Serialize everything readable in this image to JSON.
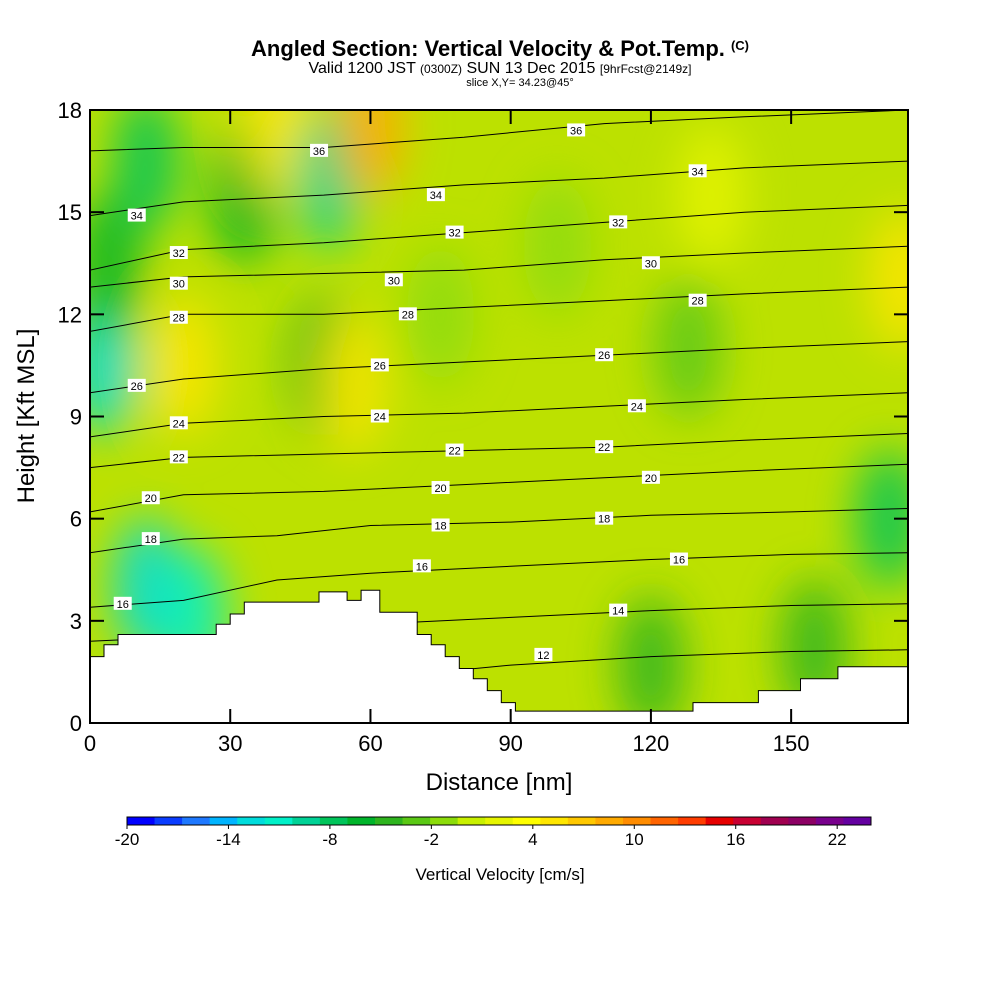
{
  "chart_data": {
    "type": "heatmap",
    "title": "Angled Section: Vertical Velocity & Pot.Temp.",
    "title_mark": "(C)",
    "subtitle_main": "Valid 1200 JST",
    "subtitle_small": "(0300Z)",
    "subtitle_date": "SUN 13 Dec 2015",
    "subtitle_fcst": "[9hrFcst@2149z]",
    "slice_info": "slice X,Y= 34.23@45°",
    "xlabel": "Distance [nm]",
    "ylabel": "Height [Kft MSL]",
    "xlim": [
      0,
      175
    ],
    "ylim": [
      0,
      18
    ],
    "x_ticks": [
      0,
      30,
      60,
      90,
      120,
      150
    ],
    "y_ticks": [
      0,
      3,
      6,
      9,
      12,
      15,
      18
    ],
    "grid": false,
    "colorbar": {
      "title": "Vertical Velocity [cm/s]",
      "min": -20,
      "max": 24,
      "tick_values": [
        -20,
        -14,
        -8,
        -2,
        4,
        10,
        16,
        22
      ],
      "tick_labels": [
        "-20",
        "-14",
        "-8",
        "-2",
        "4",
        "10",
        "16",
        "22"
      ],
      "colors": [
        "#0000ff",
        "#0a3cff",
        "#1e78ff",
        "#00b4ff",
        "#00dcdc",
        "#00f0c8",
        "#00d296",
        "#00c45a",
        "#00b42a",
        "#2eb41e",
        "#5ac814",
        "#8cdc0a",
        "#c8f000",
        "#e6f500",
        "#ffff00",
        "#ffe600",
        "#ffc800",
        "#ffaa00",
        "#ff8c00",
        "#ff6400",
        "#ff3c00",
        "#e60000",
        "#c80032",
        "#a00050",
        "#8c0064",
        "#78008c",
        "#6400a0"
      ]
    },
    "theta_contours": [
      {
        "label": "12",
        "points": [
          [
            0,
            0.9
          ],
          [
            30,
            1.0
          ],
          [
            60,
            1.3
          ],
          [
            90,
            1.7
          ],
          [
            120,
            1.95
          ],
          [
            150,
            2.1
          ],
          [
            175,
            2.15
          ]
        ]
      },
      {
        "label": "14",
        "points": [
          [
            0,
            2.4
          ],
          [
            30,
            2.6
          ],
          [
            60,
            2.9
          ],
          [
            90,
            3.1
          ],
          [
            120,
            3.3
          ],
          [
            150,
            3.45
          ],
          [
            175,
            3.5
          ]
        ]
      },
      {
        "label": "16",
        "points": [
          [
            0,
            3.4
          ],
          [
            20,
            3.6
          ],
          [
            40,
            4.2
          ],
          [
            60,
            4.4
          ],
          [
            90,
            4.6
          ],
          [
            120,
            4.8
          ],
          [
            150,
            4.95
          ],
          [
            175,
            5.0
          ]
        ]
      },
      {
        "label": "18",
        "points": [
          [
            0,
            5.0
          ],
          [
            20,
            5.4
          ],
          [
            40,
            5.5
          ],
          [
            60,
            5.8
          ],
          [
            90,
            5.9
          ],
          [
            120,
            6.1
          ],
          [
            150,
            6.2
          ],
          [
            175,
            6.3
          ]
        ]
      },
      {
        "label": "20",
        "points": [
          [
            0,
            6.2
          ],
          [
            20,
            6.7
          ],
          [
            50,
            6.8
          ],
          [
            80,
            7.0
          ],
          [
            110,
            7.2
          ],
          [
            140,
            7.4
          ],
          [
            175,
            7.6
          ]
        ]
      },
      {
        "label": "22",
        "points": [
          [
            0,
            7.5
          ],
          [
            20,
            7.8
          ],
          [
            50,
            7.9
          ],
          [
            80,
            8.0
          ],
          [
            110,
            8.1
          ],
          [
            140,
            8.3
          ],
          [
            175,
            8.5
          ]
        ]
      },
      {
        "label": "24",
        "points": [
          [
            0,
            8.4
          ],
          [
            20,
            8.8
          ],
          [
            50,
            9.0
          ],
          [
            80,
            9.1
          ],
          [
            110,
            9.3
          ],
          [
            140,
            9.5
          ],
          [
            175,
            9.7
          ]
        ]
      },
      {
        "label": "26",
        "points": [
          [
            0,
            9.7
          ],
          [
            20,
            10.1
          ],
          [
            50,
            10.4
          ],
          [
            80,
            10.6
          ],
          [
            110,
            10.8
          ],
          [
            140,
            11.0
          ],
          [
            175,
            11.2
          ]
        ]
      },
      {
        "label": "28",
        "points": [
          [
            0,
            11.5
          ],
          [
            20,
            12.0
          ],
          [
            50,
            12.0
          ],
          [
            80,
            12.2
          ],
          [
            110,
            12.4
          ],
          [
            140,
            12.6
          ],
          [
            175,
            12.8
          ]
        ]
      },
      {
        "label": "30",
        "points": [
          [
            0,
            12.8
          ],
          [
            20,
            13.1
          ],
          [
            50,
            13.2
          ],
          [
            80,
            13.3
          ],
          [
            110,
            13.6
          ],
          [
            140,
            13.8
          ],
          [
            175,
            14.0
          ]
        ]
      },
      {
        "label": "32",
        "points": [
          [
            0,
            13.3
          ],
          [
            20,
            13.9
          ],
          [
            50,
            14.1
          ],
          [
            80,
            14.4
          ],
          [
            110,
            14.7
          ],
          [
            140,
            15.0
          ],
          [
            175,
            15.2
          ]
        ]
      },
      {
        "label": "34",
        "points": [
          [
            0,
            14.9
          ],
          [
            20,
            15.3
          ],
          [
            50,
            15.5
          ],
          [
            80,
            15.8
          ],
          [
            110,
            16.0
          ],
          [
            140,
            16.3
          ],
          [
            175,
            16.5
          ]
        ]
      },
      {
        "label": "36",
        "points": [
          [
            0,
            16.8
          ],
          [
            20,
            16.9
          ],
          [
            50,
            16.9
          ],
          [
            80,
            17.2
          ],
          [
            110,
            17.6
          ],
          [
            140,
            17.8
          ],
          [
            175,
            18.0
          ]
        ]
      }
    ],
    "contour_label_positions": [
      {
        "label": "36",
        "x": 49,
        "y": 16.8
      },
      {
        "label": "36",
        "x": 104,
        "y": 17.4
      },
      {
        "label": "34",
        "x": 10,
        "y": 14.9
      },
      {
        "label": "34",
        "x": 74,
        "y": 15.5
      },
      {
        "label": "34",
        "x": 130,
        "y": 16.2
      },
      {
        "label": "32",
        "x": 19,
        "y": 13.8
      },
      {
        "label": "32",
        "x": 78,
        "y": 14.4
      },
      {
        "label": "32",
        "x": 113,
        "y": 14.7
      },
      {
        "label": "30",
        "x": 19,
        "y": 12.9
      },
      {
        "label": "30",
        "x": 65,
        "y": 13.0
      },
      {
        "label": "30",
        "x": 120,
        "y": 13.5
      },
      {
        "label": "28",
        "x": 19,
        "y": 11.9
      },
      {
        "label": "28",
        "x": 68,
        "y": 12.0
      },
      {
        "label": "28",
        "x": 130,
        "y": 12.4
      },
      {
        "label": "26",
        "x": 10,
        "y": 9.9
      },
      {
        "label": "26",
        "x": 62,
        "y": 10.5
      },
      {
        "label": "26",
        "x": 110,
        "y": 10.8
      },
      {
        "label": "24",
        "x": 19,
        "y": 8.8
      },
      {
        "label": "24",
        "x": 62,
        "y": 9.0
      },
      {
        "label": "24",
        "x": 117,
        "y": 9.3
      },
      {
        "label": "22",
        "x": 19,
        "y": 7.8
      },
      {
        "label": "22",
        "x": 78,
        "y": 8.0
      },
      {
        "label": "22",
        "x": 110,
        "y": 8.1
      },
      {
        "label": "20",
        "x": 13,
        "y": 6.6
      },
      {
        "label": "20",
        "x": 75,
        "y": 6.9
      },
      {
        "label": "20",
        "x": 120,
        "y": 7.2
      },
      {
        "label": "18",
        "x": 13,
        "y": 5.4
      },
      {
        "label": "18",
        "x": 75,
        "y": 5.8
      },
      {
        "label": "18",
        "x": 110,
        "y": 6.0
      },
      {
        "label": "16",
        "x": 7,
        "y": 3.5
      },
      {
        "label": "16",
        "x": 71,
        "y": 4.6
      },
      {
        "label": "16",
        "x": 126,
        "y": 4.8
      },
      {
        "label": "14",
        "x": 113,
        "y": 3.3
      },
      {
        "label": "12",
        "x": 97,
        "y": 2.0
      }
    ],
    "velocity_field": [
      {
        "x": 3,
        "y": 10.5,
        "value": -12
      },
      {
        "x": 4,
        "y": 13.5,
        "value": -6
      },
      {
        "x": 12,
        "y": 4.0,
        "value": -13
      },
      {
        "x": 22,
        "y": 3.1,
        "value": -11
      },
      {
        "x": 12,
        "y": 16.5,
        "value": -7
      },
      {
        "x": 20,
        "y": 10.5,
        "value": 5
      },
      {
        "x": 33,
        "y": 15.5,
        "value": -6
      },
      {
        "x": 40,
        "y": 17.5,
        "value": 6
      },
      {
        "x": 51,
        "y": 16.0,
        "value": -10
      },
      {
        "x": 50,
        "y": 10.5,
        "value": -5
      },
      {
        "x": 56,
        "y": 10.0,
        "value": 6
      },
      {
        "x": 60,
        "y": 17.5,
        "value": 9
      },
      {
        "x": 75,
        "y": 12.0,
        "value": -2
      },
      {
        "x": 100,
        "y": 14.0,
        "value": -2
      },
      {
        "x": 128,
        "y": 11.0,
        "value": -3
      },
      {
        "x": 133,
        "y": 15.5,
        "value": 2
      },
      {
        "x": 171,
        "y": 6.0,
        "value": -7
      },
      {
        "x": 174,
        "y": 13.0,
        "value": 5
      },
      {
        "x": 120,
        "y": 1.7,
        "value": -5
      },
      {
        "x": 155,
        "y": 2.2,
        "value": -5
      }
    ],
    "terrain": [
      [
        0,
        1.95
      ],
      [
        3,
        1.95
      ],
      [
        3,
        2.3
      ],
      [
        6,
        2.3
      ],
      [
        6,
        2.6
      ],
      [
        27,
        2.6
      ],
      [
        27,
        2.9
      ],
      [
        30,
        2.9
      ],
      [
        30,
        3.2
      ],
      [
        33,
        3.2
      ],
      [
        33,
        3.55
      ],
      [
        49,
        3.55
      ],
      [
        49,
        3.85
      ],
      [
        55,
        3.85
      ],
      [
        55,
        3.6
      ],
      [
        58,
        3.6
      ],
      [
        58,
        3.9
      ],
      [
        62,
        3.9
      ],
      [
        62,
        3.25
      ],
      [
        70,
        3.25
      ],
      [
        70,
        2.6
      ],
      [
        73,
        2.6
      ],
      [
        73,
        2.3
      ],
      [
        76,
        2.3
      ],
      [
        76,
        1.95
      ],
      [
        79,
        1.95
      ],
      [
        79,
        1.6
      ],
      [
        82,
        1.6
      ],
      [
        82,
        1.3
      ],
      [
        85,
        1.3
      ],
      [
        85,
        0.95
      ],
      [
        88,
        0.95
      ],
      [
        88,
        0.6
      ],
      [
        91,
        0.6
      ],
      [
        91,
        0.35
      ],
      [
        129,
        0.35
      ],
      [
        129,
        0.6
      ],
      [
        143,
        0.6
      ],
      [
        143,
        0.95
      ],
      [
        152,
        0.95
      ],
      [
        152,
        1.3
      ],
      [
        160,
        1.3
      ],
      [
        160,
        1.65
      ],
      [
        175,
        1.65
      ]
    ]
  }
}
